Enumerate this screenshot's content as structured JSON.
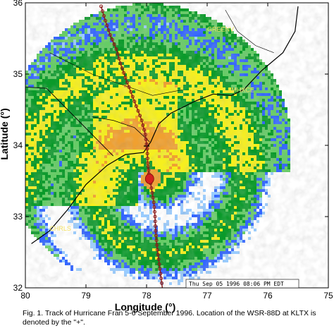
{
  "colors": {
    "frame": "#000000",
    "ocean_bg": "#ffffff",
    "land_bg": "#ffffff",
    "dbz_light_blue": "#99ccff",
    "dbz_blue": "#3366ff",
    "dbz_green_light": "#66cc66",
    "dbz_green": "#0a9a2a",
    "dbz_yellow": "#f6ef1e",
    "dbz_orange": "#f0a030",
    "track_color": "#8b1a1a",
    "eye_marker": "#d31f1f",
    "place_label": "#f2e060",
    "timestamp_box": "#ffffff"
  },
  "map": {
    "type": "radar-map",
    "x_axis": {
      "title": "Longitude (°)",
      "range": [
        80,
        75
      ],
      "ticks": [
        80,
        79,
        78,
        77,
        76,
        75
      ],
      "tick_labels": [
        "80",
        "79",
        "78",
        "77",
        "76",
        "75"
      ]
    },
    "y_axis": {
      "title": "Latitude (°)",
      "range": [
        32,
        36
      ],
      "ticks": [
        32,
        33,
        34,
        35,
        36
      ],
      "tick_labels": [
        "32",
        "33",
        "34",
        "35",
        "36"
      ]
    },
    "radar_site": {
      "name": "KLTX",
      "lon": 78.0,
      "lat": 33.99,
      "max_range_deg": 2.25
    },
    "track_points": [
      [
        78.75,
        35.95
      ],
      [
        78.68,
        35.75
      ],
      [
        78.6,
        35.55
      ],
      [
        78.5,
        35.35
      ],
      [
        78.43,
        35.15
      ],
      [
        78.35,
        34.95
      ],
      [
        78.26,
        34.75
      ],
      [
        78.17,
        34.55
      ],
      [
        78.08,
        34.35
      ],
      [
        78.02,
        34.15
      ],
      [
        77.99,
        33.95
      ],
      [
        77.98,
        33.75
      ],
      [
        77.96,
        33.6
      ],
      [
        77.92,
        33.4
      ],
      [
        77.88,
        33.2
      ],
      [
        77.86,
        33.0
      ],
      [
        77.85,
        32.8
      ],
      [
        77.83,
        32.6
      ],
      [
        77.8,
        32.4
      ],
      [
        77.77,
        32.2
      ],
      [
        77.74,
        32.0
      ]
    ],
    "eye": {
      "lon": 77.95,
      "lat": 33.55
    },
    "place_labels": [
      {
        "text": "GREENV",
        "lon": 77.0,
        "lat": 35.6
      },
      {
        "text": "MHXCE",
        "lon": 76.6,
        "lat": 34.75
      },
      {
        "text": "CHRLS",
        "lon": 79.6,
        "lat": 32.8
      }
    ],
    "timestamp": "Thu Sep 05 1996 08:06 PM EDT"
  },
  "caption": "Fig. 1. Track of Hurricane Fran 5-6 September 1996. Location of the WSR-88D at KLTX is denoted by the \"+\"."
}
